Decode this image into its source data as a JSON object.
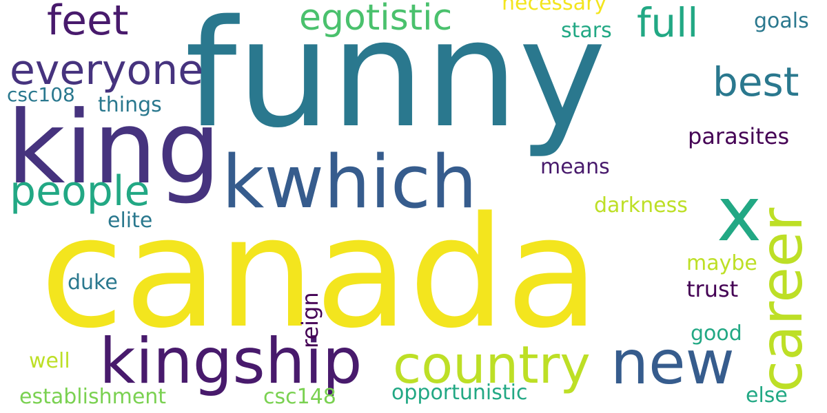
{
  "colors": {
    "background": "#ffffff",
    "palette": {
      "teal": "#2a788e",
      "yellow": "#f3e51e",
      "indigo": "#46337e",
      "darkblue": "#365c8d",
      "green": "#22a884",
      "lightgreen": "#7ad151",
      "lime": "#bddf26",
      "purple": "#440154",
      "darkpurple": "#481a6c"
    }
  },
  "words": {
    "funny": "funny",
    "canada": "canada",
    "king": "king",
    "kwhich": "kwhich",
    "kingship": "kingship",
    "new": "new",
    "country": "country",
    "x": "x",
    "career": "career",
    "everyone": "everyone",
    "feet": "feet",
    "people": "people",
    "egotistic": "egotistic",
    "full": "full",
    "best": "best",
    "necessary": "necessary",
    "stars": "stars",
    "goals": "goals",
    "csc108": "csc108",
    "things": "things",
    "parasites": "parasites",
    "means": "means",
    "darkness": "darkness",
    "elite": "elite",
    "maybe": "maybe",
    "trust": "trust",
    "duke": "duke",
    "reign": "reign",
    "good": "good",
    "well": "well",
    "establishment": "establishment",
    "csc148": "csc148",
    "opportunistic": "opportunistic",
    "else": "else"
  }
}
